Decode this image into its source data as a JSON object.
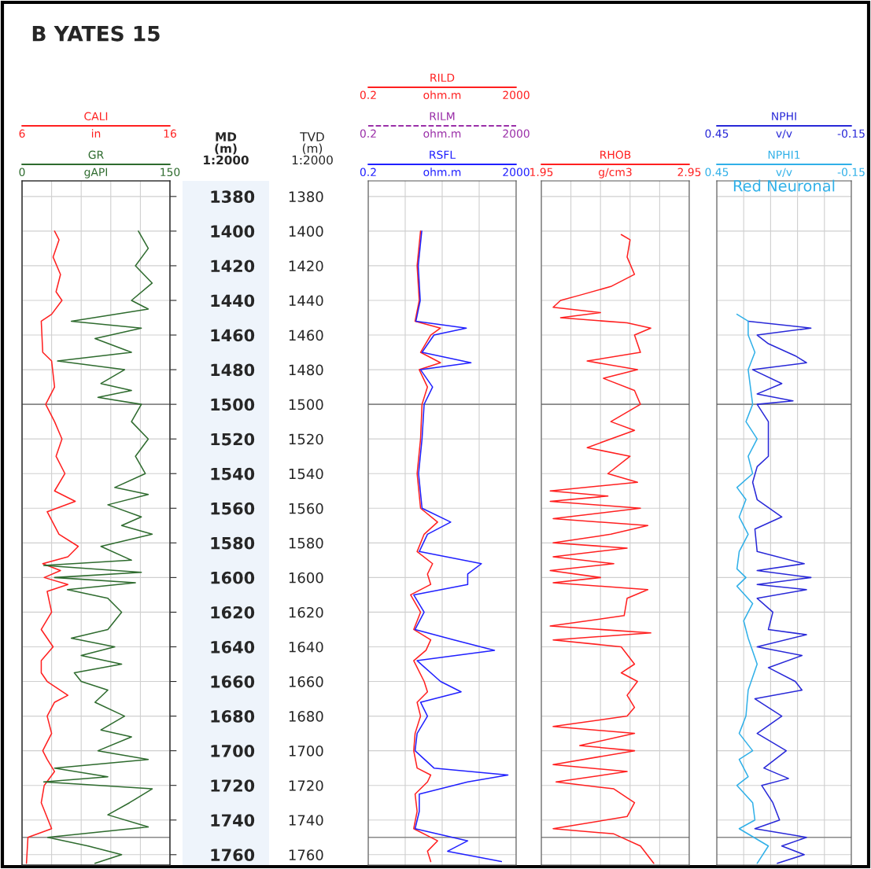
{
  "chart_data": [
    {
      "type": "line",
      "title": "B YATES 15",
      "ylabel": "MD\n(m)\n1:2000",
      "orientation": "horizontal",
      "xlabel": "in",
      "xlim": [
        6,
        16
      ],
      "xticks": [
        {
          "value": 6,
          "label": "6"
        },
        {
          "value": 8,
          "label": null
        },
        {
          "value": 10,
          "label": null
        },
        {
          "value": 12,
          "label": null
        },
        {
          "value": 14,
          "label": null
        },
        {
          "value": 16,
          "label": "16"
        }
      ],
      "x2label": "gAPI",
      "x2lim": [
        0,
        150
      ],
      "x2ticks": [
        {
          "value": 0,
          "label": "0"
        },
        {
          "value": 150,
          "label": "150"
        }
      ],
      "ylim": [
        1766,
        1371
      ],
      "yticks": [
        1380,
        1400,
        1420,
        1440,
        1460,
        1480,
        1500,
        1520,
        1540,
        1560,
        1580,
        1600,
        1620,
        1640,
        1660,
        1680,
        1700,
        1720,
        1740,
        1760
      ],
      "grid": true,
      "ref_lines": [
        {
          "axis": "y",
          "value": 1500,
          "color": "#888888"
        },
        {
          "axis": "y",
          "value": 1750,
          "color": "#888888"
        }
      ],
      "series": [
        {
          "name": "CALI",
          "color": "#ff2020",
          "x": [
            1400,
            1405,
            1415,
            1425,
            1435,
            1440,
            1448,
            1452,
            1470,
            1475,
            1490,
            1500,
            1510,
            1520,
            1530,
            1540,
            1550,
            1556,
            1562,
            1575,
            1582,
            1588,
            1592,
            1596,
            1600,
            1604,
            1608,
            1620,
            1630,
            1640,
            1648,
            1655,
            1660,
            1668,
            1672,
            1680,
            1690,
            1700,
            1705,
            1712,
            1720,
            1730,
            1745,
            1750,
            1765
          ],
          "values": [
            8.2,
            8.5,
            8.1,
            8.6,
            8.3,
            8.7,
            8.0,
            7.3,
            7.4,
            8.0,
            8.2,
            7.6,
            8.2,
            8.7,
            8.3,
            8.9,
            8.2,
            9.6,
            7.7,
            8.5,
            9.8,
            9.1,
            7.4,
            8.6,
            7.5,
            9.1,
            7.7,
            8.0,
            7.3,
            8.1,
            7.3,
            7.3,
            7.7,
            9.1,
            8.2,
            7.7,
            8.0,
            7.4,
            7.7,
            8.2,
            7.5,
            7.3,
            8.0,
            6.4,
            6.3
          ]
        },
        {
          "name": "GR",
          "color": "#2e6b2e",
          "axis": "x2",
          "x": [
            1400,
            1410,
            1420,
            1430,
            1440,
            1445,
            1452,
            1456,
            1462,
            1470,
            1475,
            1480,
            1488,
            1492,
            1496,
            1500,
            1510,
            1520,
            1530,
            1540,
            1548,
            1552,
            1558,
            1565,
            1570,
            1575,
            1582,
            1590,
            1593,
            1597,
            1600,
            1603,
            1607,
            1612,
            1620,
            1630,
            1635,
            1640,
            1645,
            1650,
            1655,
            1660,
            1665,
            1672,
            1680,
            1688,
            1692,
            1700,
            1705,
            1710,
            1715,
            1718,
            1722,
            1730,
            1737,
            1744,
            1750,
            1755,
            1760,
            1765
          ],
          "values": [
            118,
            128,
            115,
            132,
            111,
            128,
            50,
            121,
            74,
            111,
            36,
            104,
            80,
            111,
            77,
            121,
            111,
            128,
            115,
            125,
            94,
            128,
            87,
            121,
            101,
            132,
            80,
            111,
            22,
            121,
            33,
            115,
            46,
            87,
            101,
            87,
            50,
            94,
            60,
            101,
            53,
            60,
            87,
            74,
            104,
            80,
            111,
            77,
            128,
            33,
            87,
            22,
            132,
            109,
            87,
            128,
            26,
            67,
            101,
            74
          ]
        }
      ]
    },
    {
      "type": "line",
      "ylabel": "TVD\n(m)\n1:2000",
      "orientation": "horizontal",
      "log": "x",
      "xlabel": "ohm.m",
      "xlim": [
        0.2,
        2000
      ],
      "xticks": [
        {
          "value": 0.2,
          "label": "0.2"
        },
        {
          "value": 2,
          "label": null
        },
        {
          "value": 20,
          "label": null
        },
        {
          "value": 200,
          "label": null
        },
        {
          "value": 2000,
          "label": "2000"
        }
      ],
      "ylim": [
        1766,
        1371
      ],
      "yticks": [
        1380,
        1400,
        1420,
        1440,
        1460,
        1480,
        1500,
        1520,
        1540,
        1560,
        1580,
        1600,
        1620,
        1640,
        1660,
        1680,
        1700,
        1720,
        1740,
        1760
      ],
      "grid": true,
      "ref_lines": [
        {
          "axis": "y",
          "value": 1500,
          "color": "#888888"
        },
        {
          "axis": "y",
          "value": 1750,
          "color": "#888888"
        }
      ],
      "series": [
        {
          "name": "RILD",
          "color": "#ff2020",
          "x": [
            1400,
            1420,
            1440,
            1452,
            1456,
            1460,
            1470,
            1476,
            1480,
            1490,
            1500,
            1520,
            1540,
            1560,
            1568,
            1575,
            1585,
            1592,
            1598,
            1604,
            1610,
            1620,
            1630,
            1636,
            1642,
            1648,
            1660,
            1666,
            1672,
            1680,
            1690,
            1700,
            1710,
            1714,
            1718,
            1725,
            1735,
            1745,
            1752,
            1758,
            1764
          ],
          "values": [
            5.2,
            4.2,
            4.8,
            3.7,
            18,
            9.8,
            5.2,
            18,
            4.8,
            8.0,
            5.7,
            5.2,
            4.2,
            5.2,
            15,
            6.5,
            4.2,
            11,
            8.0,
            9.8,
            2.8,
            5.2,
            3.4,
            9.8,
            7.3,
            3.4,
            6.5,
            8.0,
            4.2,
            5.2,
            3.7,
            3.4,
            4.2,
            9.8,
            8.0,
            3.7,
            4.2,
            3.4,
            15,
            8.0,
            9.8
          ]
        },
        {
          "name": "RILM",
          "color": "#9a2fa8",
          "line_style": "dashed"
        },
        {
          "name": "RSFL",
          "color": "#2020ff",
          "x": [
            1400,
            1420,
            1440,
            1452,
            1456,
            1460,
            1470,
            1476,
            1480,
            1490,
            1500,
            1520,
            1540,
            1560,
            1568,
            1575,
            1585,
            1592,
            1598,
            1604,
            1610,
            1620,
            1630,
            1636,
            1642,
            1648,
            1660,
            1666,
            1672,
            1680,
            1690,
            1700,
            1710,
            1714,
            1718,
            1725,
            1735,
            1745,
            1752,
            1758,
            1764
          ],
          "values": [
            5.6,
            4.5,
            5.1,
            3.9,
            90,
            12,
            5.7,
            120,
            5.2,
            11,
            6.5,
            5.7,
            4.6,
            5.7,
            34,
            8.0,
            4.8,
            230,
            98,
            98,
            3.4,
            6.5,
            3.7,
            42,
            520,
            4.2,
            18,
            65,
            5.2,
            8.0,
            4.2,
            3.7,
            12,
            1200,
            98,
            4.8,
            4.8,
            3.7,
            98,
            28,
            800
          ]
        }
      ]
    },
    {
      "type": "line",
      "orientation": "horizontal",
      "tick_labels": "x",
      "xlabel": "g/cm3",
      "xlim": [
        1.95,
        2.95
      ],
      "xticks": [
        {
          "value": 1.95,
          "label": "1.95"
        },
        {
          "value": 2.15,
          "label": null
        },
        {
          "value": 2.35,
          "label": null
        },
        {
          "value": 2.55,
          "label": null
        },
        {
          "value": 2.75,
          "label": null
        },
        {
          "value": 2.95,
          "label": "2.95"
        }
      ],
      "ylim": [
        1766,
        1371
      ],
      "yticks": [
        1380,
        1400,
        1420,
        1440,
        1460,
        1480,
        1500,
        1520,
        1540,
        1560,
        1580,
        1600,
        1620,
        1640,
        1660,
        1680,
        1700,
        1720,
        1740,
        1760
      ],
      "grid": true,
      "ref_lines": [
        {
          "axis": "y",
          "value": 1500,
          "color": "#888888"
        },
        {
          "axis": "y",
          "value": 1750,
          "color": "#888888"
        }
      ],
      "series": [
        {
          "name": "RHOB",
          "color": "#ff2020",
          "x": [
            1402,
            1405,
            1415,
            1425,
            1432,
            1437,
            1440,
            1444,
            1447,
            1450,
            1453,
            1456,
            1460,
            1470,
            1475,
            1480,
            1485,
            1492,
            1500,
            1510,
            1515,
            1525,
            1530,
            1540,
            1545,
            1550,
            1553,
            1556,
            1560,
            1566,
            1570,
            1575,
            1580,
            1583,
            1588,
            1592,
            1596,
            1600,
            1603,
            1607,
            1612,
            1622,
            1628,
            1632,
            1636,
            1640,
            1650,
            1655,
            1660,
            1668,
            1675,
            1680,
            1686,
            1690,
            1697,
            1700,
            1708,
            1712,
            1718,
            1722,
            1730,
            1738,
            1745,
            1748,
            1755,
            1765
          ],
          "values": [
            2.49,
            2.55,
            2.53,
            2.58,
            2.42,
            2.21,
            2.08,
            2.03,
            2.35,
            2.08,
            2.53,
            2.69,
            2.58,
            2.62,
            2.26,
            2.6,
            2.37,
            2.58,
            2.62,
            2.42,
            2.58,
            2.26,
            2.55,
            2.4,
            2.6,
            2.01,
            2.4,
            2.01,
            2.62,
            2.03,
            2.67,
            2.42,
            2.03,
            2.53,
            2.03,
            2.44,
            2.01,
            2.35,
            2.03,
            2.67,
            2.53,
            2.51,
            2.01,
            2.69,
            2.03,
            2.49,
            2.58,
            2.49,
            2.6,
            2.53,
            2.58,
            2.53,
            2.03,
            2.58,
            2.21,
            2.58,
            2.03,
            2.53,
            2.05,
            2.44,
            2.58,
            2.53,
            2.03,
            2.44,
            2.62,
            2.71
          ]
        }
      ]
    },
    {
      "type": "line",
      "orientation": "horizontal",
      "tick_labels": "x",
      "annotations": [
        "Red Neuronal"
      ],
      "xlabel": "v/v",
      "xlim": [
        0.45,
        -0.15
      ],
      "xticks": [
        {
          "value": 0.45,
          "label": "0.45"
        },
        {
          "value": 0.33,
          "label": null
        },
        {
          "value": 0.21,
          "label": null
        },
        {
          "value": 0.09,
          "label": null
        },
        {
          "value": -0.03,
          "label": null
        },
        {
          "value": -0.15,
          "label": "-0.15"
        }
      ],
      "ylim": [
        1766,
        1371
      ],
      "yticks": [
        1380,
        1400,
        1420,
        1440,
        1460,
        1480,
        1500,
        1520,
        1540,
        1560,
        1580,
        1600,
        1620,
        1640,
        1660,
        1680,
        1700,
        1720,
        1740,
        1760
      ],
      "grid": true,
      "ref_lines": [
        {
          "axis": "y",
          "value": 1500,
          "color": "#888888"
        },
        {
          "axis": "y",
          "value": 1750,
          "color": "#888888"
        }
      ],
      "series": [
        {
          "name": "NPHI",
          "color": "#2828d8",
          "x": [
            1452,
            1456,
            1460,
            1465,
            1472,
            1476,
            1480,
            1488,
            1494,
            1498,
            1500,
            1510,
            1520,
            1530,
            1536,
            1545,
            1555,
            1565,
            1572,
            1585,
            1592,
            1596,
            1600,
            1604,
            1607,
            1612,
            1620,
            1630,
            1633,
            1640,
            1645,
            1652,
            1660,
            1665,
            1670,
            1680,
            1690,
            1700,
            1710,
            1716,
            1720,
            1730,
            1740,
            1745,
            1750,
            1755,
            1760,
            1765
          ],
          "values": [
            0.31,
            0.03,
            0.27,
            0.22,
            0.1,
            0.05,
            0.29,
            0.16,
            0.27,
            0.11,
            0.27,
            0.22,
            0.22,
            0.22,
            0.27,
            0.29,
            0.27,
            0.16,
            0.28,
            0.27,
            0.06,
            0.27,
            0.03,
            0.27,
            0.05,
            0.27,
            0.2,
            0.22,
            0.05,
            0.27,
            0.07,
            0.22,
            0.1,
            0.07,
            0.28,
            0.16,
            0.27,
            0.14,
            0.24,
            0.13,
            0.25,
            0.2,
            0.17,
            0.28,
            0.05,
            0.16,
            0.06,
            0.18
          ]
        },
        {
          "name": "NPHI1",
          "color": "#30b0e8",
          "x": [
            1448,
            1452,
            1460,
            1470,
            1480,
            1500,
            1510,
            1520,
            1530,
            1540,
            1548,
            1555,
            1565,
            1575,
            1585,
            1595,
            1600,
            1605,
            1615,
            1625,
            1635,
            1650,
            1665,
            1680,
            1690,
            1700,
            1705,
            1715,
            1720,
            1730,
            1740,
            1745,
            1755,
            1765
          ],
          "values": [
            0.36,
            0.31,
            0.31,
            0.28,
            0.31,
            0.29,
            0.32,
            0.27,
            0.31,
            0.29,
            0.36,
            0.32,
            0.35,
            0.31,
            0.35,
            0.36,
            0.32,
            0.36,
            0.29,
            0.33,
            0.31,
            0.27,
            0.31,
            0.32,
            0.35,
            0.29,
            0.35,
            0.31,
            0.36,
            0.29,
            0.28,
            0.35,
            0.22,
            0.27
          ]
        }
      ]
    }
  ]
}
